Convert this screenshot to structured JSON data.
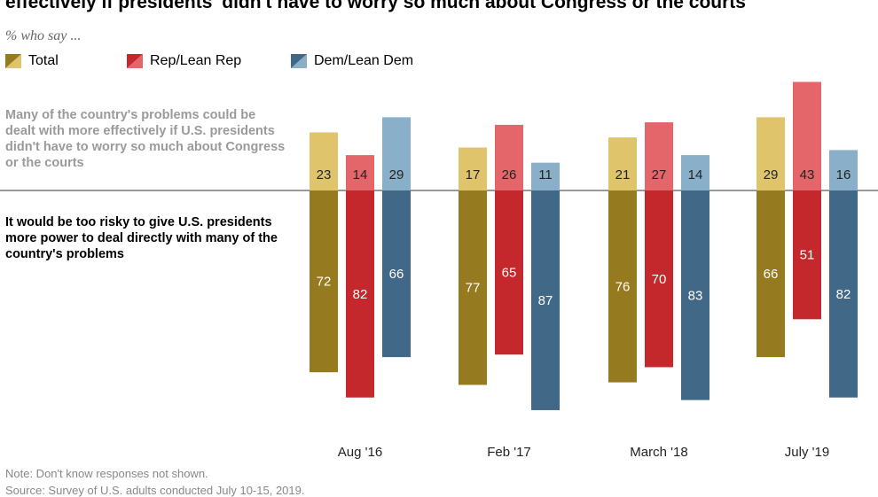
{
  "header": {
    "title": "effectively if presidents' didn't have to worry so much about Congress or the courts",
    "subtitle": "% who say ..."
  },
  "labels": {
    "top": "Many of the country's problems could be dealt with more effectively if U.S. presidents didn't have to worry so much about Congress or the courts",
    "bottom": "It would be too risky to give U.S. presidents more power to deal directly with many of the country's problems"
  },
  "footer": {
    "note": "Note: Don't know responses not shown.",
    "source": "Source: Survey of U.S. adults conducted July 10-15, 2019."
  },
  "chart_data": {
    "type": "bar",
    "orientation": "diverging-vertical",
    "categories": [
      "Aug '16",
      "Feb '17",
      "March '18",
      "July '19"
    ],
    "series": [
      {
        "name": "Total",
        "color": "#e0c46c",
        "color_below": "#957a1f",
        "above": [
          23,
          17,
          21,
          29
        ],
        "below": [
          72,
          77,
          76,
          66
        ]
      },
      {
        "name": "Rep/Lean Rep",
        "color": "#e5666a",
        "color_below": "#c4282c",
        "above": [
          14,
          26,
          27,
          43
        ],
        "below": [
          82,
          65,
          70,
          51
        ]
      },
      {
        "name": "Dem/Lean Dem",
        "color": "#8aafc9",
        "color_below": "#426887",
        "above": [
          29,
          11,
          14,
          16
        ],
        "below": [
          66,
          87,
          83,
          82
        ]
      }
    ],
    "legend_position": "top-left",
    "grid": false
  }
}
